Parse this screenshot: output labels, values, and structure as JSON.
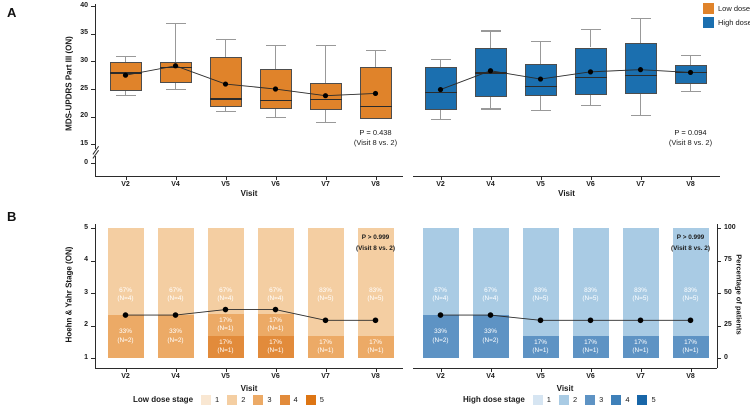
{
  "figure": {
    "panel_a_label": "A",
    "panel_b_label": "B"
  },
  "colors": {
    "low_dose": "#E0832A",
    "high_dose": "#1B6FAF",
    "low_stage": [
      "#F9E7D2",
      "#F4CEA2",
      "#ECAA66",
      "#E28B3B",
      "#DD7514"
    ],
    "high_stage": [
      "#D6E5F2",
      "#A9CBE4",
      "#5E93C4",
      "#3E80B9",
      "#1866A8"
    ],
    "whisker": "#999999",
    "box_border": "#4D4D4D",
    "axis": "#2B2B2B",
    "trend": "#2B2B2B",
    "dot": "#000000"
  },
  "legend_a": {
    "items": [
      {
        "label": "Low dose",
        "color_key": "low_dose"
      },
      {
        "label": "High dose",
        "color_key": "high_dose"
      }
    ]
  },
  "chart_data": [
    {
      "id": "a_low",
      "type": "box",
      "group": "Low dose",
      "ylabel": "MDS-UPDRS Part III (ON)",
      "xlabel": "Visit",
      "yticks": [
        0,
        15,
        20,
        25,
        30,
        35,
        40
      ],
      "ylim": [
        15,
        40
      ],
      "axis_break_between": [
        0,
        15
      ],
      "categories": [
        "V2",
        "V4",
        "V5",
        "V6",
        "V7",
        "V8"
      ],
      "boxes": [
        {
          "whisker_low": 24,
          "q1": 24.7,
          "median": 28.0,
          "q3": 29.8,
          "whisker_high": 31,
          "mean": 27.5
        },
        {
          "whisker_low": 25,
          "q1": 26.0,
          "median": 29.0,
          "q3": 29.8,
          "whisker_high": 37,
          "mean": 29.2
        },
        {
          "whisker_low": 21,
          "q1": 21.8,
          "median": 23.3,
          "q3": 30.8,
          "whisker_high": 34,
          "mean": 25.9
        },
        {
          "whisker_low": 20,
          "q1": 21.4,
          "median": 23.0,
          "q3": 28.6,
          "whisker_high": 33,
          "mean": 25.0
        },
        {
          "whisker_low": 19,
          "q1": 21.2,
          "median": 23.2,
          "q3": 26.0,
          "whisker_high": 33,
          "mean": 23.8
        },
        {
          "whisker_low": 19.5,
          "q1": 19.5,
          "median": 22.0,
          "q3": 29.0,
          "whisker_high": 32,
          "mean": 24.2
        }
      ],
      "p_text": "P = 0.438",
      "p_sub": "(Visit 8 vs. 2)"
    },
    {
      "id": "a_high",
      "type": "box",
      "group": "High dose",
      "xlabel": "Visit",
      "categories": [
        "V2",
        "V4",
        "V5",
        "V6",
        "V7",
        "V8"
      ],
      "boxes": [
        {
          "whisker_low": 19.6,
          "q1": 21.3,
          "median": 24.5,
          "q3": 28.9,
          "whisker_high": 30.4,
          "mean": 24.9
        },
        {
          "whisker_low": 21.5,
          "q1": 23.5,
          "median": 28.0,
          "q3": 32.5,
          "whisker_high": 35.6,
          "mean": 28.3
        },
        {
          "whisker_low": 21.2,
          "q1": 23.8,
          "median": 25.6,
          "q3": 29.6,
          "whisker_high": 33.7,
          "mean": 26.8
        },
        {
          "whisker_low": 22.1,
          "q1": 23.9,
          "median": 27.2,
          "q3": 32.5,
          "whisker_high": 35.8,
          "mean": 28.1
        },
        {
          "whisker_low": 20.3,
          "q1": 24.1,
          "median": 27.5,
          "q3": 33.3,
          "whisker_high": 37.8,
          "mean": 28.5
        },
        {
          "whisker_low": 24.7,
          "q1": 25.9,
          "median": 28.1,
          "q3": 29.3,
          "whisker_high": 31.1,
          "mean": 28.0
        }
      ],
      "p_text": "P = 0.094",
      "p_sub": "(Visit 8 vs. 2)"
    },
    {
      "id": "b_low",
      "type": "stacked_bar",
      "group": "Low dose",
      "ylabel": "Hoehn & Yahr Stage (ON)",
      "xlabel": "Visit",
      "yticks": [
        1,
        2,
        3,
        4,
        5
      ],
      "categories": [
        "V2",
        "V4",
        "V5",
        "V6",
        "V7",
        "V8"
      ],
      "bars": [
        [
          {
            "stage": 3,
            "pct": 33,
            "n": 2
          },
          {
            "stage": 2,
            "pct": 67,
            "n": 4
          }
        ],
        [
          {
            "stage": 3,
            "pct": 33,
            "n": 2
          },
          {
            "stage": 2,
            "pct": 67,
            "n": 4
          }
        ],
        [
          {
            "stage": 4,
            "pct": 17,
            "n": 1
          },
          {
            "stage": 3,
            "pct": 17,
            "n": 1
          },
          {
            "stage": 2,
            "pct": 67,
            "n": 4
          }
        ],
        [
          {
            "stage": 4,
            "pct": 17,
            "n": 1
          },
          {
            "stage": 3,
            "pct": 17,
            "n": 1
          },
          {
            "stage": 2,
            "pct": 67,
            "n": 4
          }
        ],
        [
          {
            "stage": 3,
            "pct": 17,
            "n": 1
          },
          {
            "stage": 2,
            "pct": 83,
            "n": 5
          }
        ],
        [
          {
            "stage": 3,
            "pct": 17,
            "n": 1
          },
          {
            "stage": 2,
            "pct": 83,
            "n": 5
          }
        ]
      ],
      "mean_stage": [
        2.33,
        2.33,
        2.5,
        2.5,
        2.17,
        2.17
      ],
      "p_text": "P > 0.999",
      "p_sub": "(Visit 8 vs. 2)",
      "legend_title": "Low dose stage",
      "legend_stages": [
        "1",
        "2",
        "3",
        "4",
        "5"
      ]
    },
    {
      "id": "b_high",
      "type": "stacked_bar",
      "group": "High dose",
      "xlabel": "Visit",
      "y2label": "Percentage of patients",
      "y2ticks": [
        0,
        25,
        50,
        75,
        100
      ],
      "categories": [
        "V2",
        "V4",
        "V5",
        "V6",
        "V7",
        "V8"
      ],
      "bars": [
        [
          {
            "stage": 3,
            "pct": 33,
            "n": 2
          },
          {
            "stage": 2,
            "pct": 67,
            "n": 4
          }
        ],
        [
          {
            "stage": 3,
            "pct": 33,
            "n": 2
          },
          {
            "stage": 2,
            "pct": 67,
            "n": 4
          }
        ],
        [
          {
            "stage": 3,
            "pct": 17,
            "n": 1
          },
          {
            "stage": 2,
            "pct": 83,
            "n": 5
          }
        ],
        [
          {
            "stage": 3,
            "pct": 17,
            "n": 1
          },
          {
            "stage": 2,
            "pct": 83,
            "n": 5
          }
        ],
        [
          {
            "stage": 3,
            "pct": 17,
            "n": 1
          },
          {
            "stage": 2,
            "pct": 83,
            "n": 5
          }
        ],
        [
          {
            "stage": 3,
            "pct": 17,
            "n": 1
          },
          {
            "stage": 2,
            "pct": 83,
            "n": 5
          }
        ]
      ],
      "mean_stage": [
        2.33,
        2.33,
        2.17,
        2.17,
        2.17,
        2.17
      ],
      "p_text": "P > 0.999",
      "p_sub": "(Visit 8 vs. 2)",
      "legend_title": "High dose stage",
      "legend_stages": [
        "1",
        "2",
        "3",
        "4",
        "5"
      ]
    }
  ]
}
